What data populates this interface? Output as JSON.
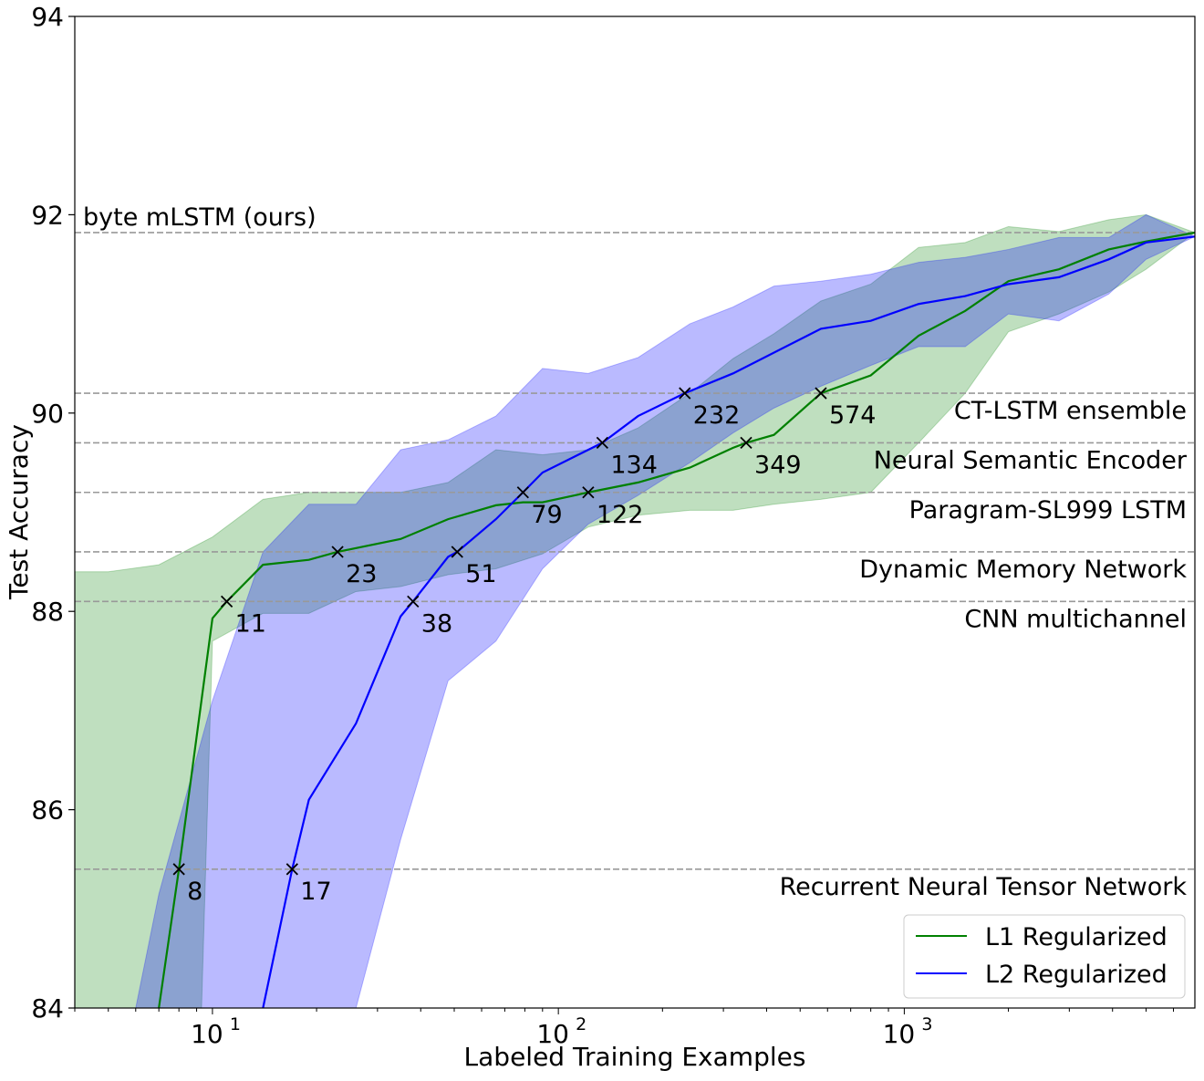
{
  "chart_data": {
    "type": "line",
    "xlabel": "Labeled Training Examples",
    "ylabel": "Test Accuracy",
    "xscale": "log",
    "xlim": [
      4,
      6920
    ],
    "ylim": [
      84,
      94
    ],
    "xticks": [
      {
        "value": 10,
        "label": "10",
        "exp": "1"
      },
      {
        "value": 100,
        "label": "10",
        "exp": "2"
      },
      {
        "value": 1000,
        "label": "10",
        "exp": "3"
      }
    ],
    "yticks": [
      84,
      86,
      88,
      90,
      92,
      94
    ],
    "grid": false,
    "legend": "bottom-right",
    "series": [
      {
        "name": "L1 Regularized",
        "color": "#008000",
        "x": [
          7,
          8,
          10,
          11,
          14,
          19,
          23,
          35,
          48,
          66,
          79,
          90,
          122,
          170,
          240,
          320,
          349,
          420,
          574,
          800,
          1100,
          1500,
          2000,
          2800,
          3900,
          5000,
          6920
        ],
        "y": [
          84.0,
          85.4,
          87.93,
          88.1,
          88.47,
          88.52,
          88.6,
          88.73,
          88.93,
          89.07,
          89.1,
          89.1,
          89.2,
          89.3,
          89.45,
          89.65,
          89.7,
          89.78,
          90.2,
          90.38,
          90.78,
          91.03,
          91.33,
          91.45,
          91.65,
          91.73,
          91.82
        ],
        "band_upper": {
          "x": [
            4,
            5,
            7,
            10,
            14,
            19,
            26,
            35,
            48,
            66,
            90,
            122,
            170,
            240,
            320,
            420,
            574,
            800,
            1100,
            1500,
            2000,
            2800,
            3900,
            5000,
            6920
          ],
          "y": [
            88.4,
            88.4,
            88.47,
            88.75,
            89.13,
            89.2,
            89.2,
            89.2,
            89.3,
            89.63,
            89.58,
            89.63,
            89.85,
            90.2,
            90.55,
            90.8,
            91.13,
            91.3,
            91.67,
            91.72,
            91.88,
            91.83,
            91.95,
            92.0,
            91.82
          ]
        },
        "band_lower": {
          "x": [
            4,
            9.3,
            10,
            14,
            19,
            26,
            35,
            48,
            66,
            90,
            122,
            170,
            240,
            320,
            420,
            574,
            800,
            1100,
            1500,
            2000,
            2800,
            3900,
            5000,
            6920
          ],
          "y": [
            84.0,
            84.0,
            87.7,
            87.98,
            87.98,
            88.2,
            88.25,
            88.37,
            88.43,
            88.58,
            88.85,
            88.97,
            89.02,
            89.02,
            89.08,
            89.13,
            89.2,
            89.7,
            90.2,
            90.82,
            91.0,
            91.22,
            91.45,
            91.82
          ]
        },
        "markers": [
          {
            "x": 8,
            "y": 85.4,
            "label": "8"
          },
          {
            "x": 11,
            "y": 88.1,
            "label": "11"
          },
          {
            "x": 23,
            "y": 88.6,
            "label": "23"
          },
          {
            "x": 122,
            "y": 89.2,
            "label": "122"
          },
          {
            "x": 349,
            "y": 89.7,
            "label": "349"
          },
          {
            "x": 574,
            "y": 90.2,
            "label": "574"
          }
        ]
      },
      {
        "name": "L2 Regularized",
        "color": "#0000ff",
        "x": [
          14,
          17,
          19,
          26,
          35,
          38,
          48,
          51,
          66,
          79,
          90,
          134,
          170,
          232,
          320,
          574,
          800,
          1100,
          1500,
          2000,
          2800,
          3900,
          5000,
          6920
        ],
        "y": [
          84.0,
          85.4,
          86.1,
          86.87,
          87.95,
          88.1,
          88.55,
          88.6,
          88.93,
          89.2,
          89.4,
          89.7,
          89.97,
          90.2,
          90.4,
          90.85,
          90.93,
          91.1,
          91.18,
          91.3,
          91.37,
          91.55,
          91.72,
          91.78
        ],
        "band_upper": {
          "x": [
            6,
            7,
            10,
            14,
            19,
            26,
            35,
            48,
            66,
            90,
            122,
            170,
            240,
            320,
            420,
            574,
            800,
            1100,
            1500,
            2000,
            2800,
            3900,
            5000,
            6920
          ],
          "y": [
            84.0,
            85.15,
            87.1,
            88.6,
            89.08,
            89.08,
            89.63,
            89.73,
            89.97,
            90.45,
            90.4,
            90.56,
            90.9,
            91.07,
            91.28,
            91.33,
            91.4,
            91.52,
            91.57,
            91.65,
            91.77,
            91.77,
            92.0,
            91.78
          ]
        },
        "band_lower": {
          "x": [
            9.2,
            26,
            35,
            48,
            66,
            90,
            122,
            170,
            240,
            320,
            420,
            574,
            800,
            1100,
            1500,
            2000,
            2800,
            3900,
            5000,
            6920
          ],
          "y": [
            84.0,
            84.0,
            85.7,
            87.3,
            87.7,
            88.43,
            88.88,
            89.17,
            89.5,
            89.8,
            90.05,
            90.27,
            90.48,
            90.67,
            90.67,
            91.0,
            90.93,
            91.2,
            91.55,
            91.78
          ]
        },
        "markers": [
          {
            "x": 17,
            "y": 85.4,
            "label": "17"
          },
          {
            "x": 38,
            "y": 88.1,
            "label": "38"
          },
          {
            "x": 51,
            "y": 88.6,
            "label": "51"
          },
          {
            "x": 79,
            "y": 89.2,
            "label": "79"
          },
          {
            "x": 134,
            "y": 89.7,
            "label": "134"
          },
          {
            "x": 232,
            "y": 90.2,
            "label": "232"
          }
        ]
      }
    ],
    "reference_lines": [
      {
        "y": 91.82,
        "label": "byte mLSTM (ours)",
        "align": "left"
      },
      {
        "y": 90.2,
        "label": "CT-LSTM ensemble",
        "align": "right"
      },
      {
        "y": 89.7,
        "label": "Neural Semantic Encoder",
        "align": "right"
      },
      {
        "y": 89.2,
        "label": "Paragram-SL999 LSTM",
        "align": "right"
      },
      {
        "y": 88.6,
        "label": "Dynamic Memory Network",
        "align": "right"
      },
      {
        "y": 88.1,
        "label": "CNN multichannel",
        "align": "right"
      },
      {
        "y": 85.4,
        "label": "Recurrent Neural Tensor Network",
        "align": "right"
      }
    ]
  }
}
